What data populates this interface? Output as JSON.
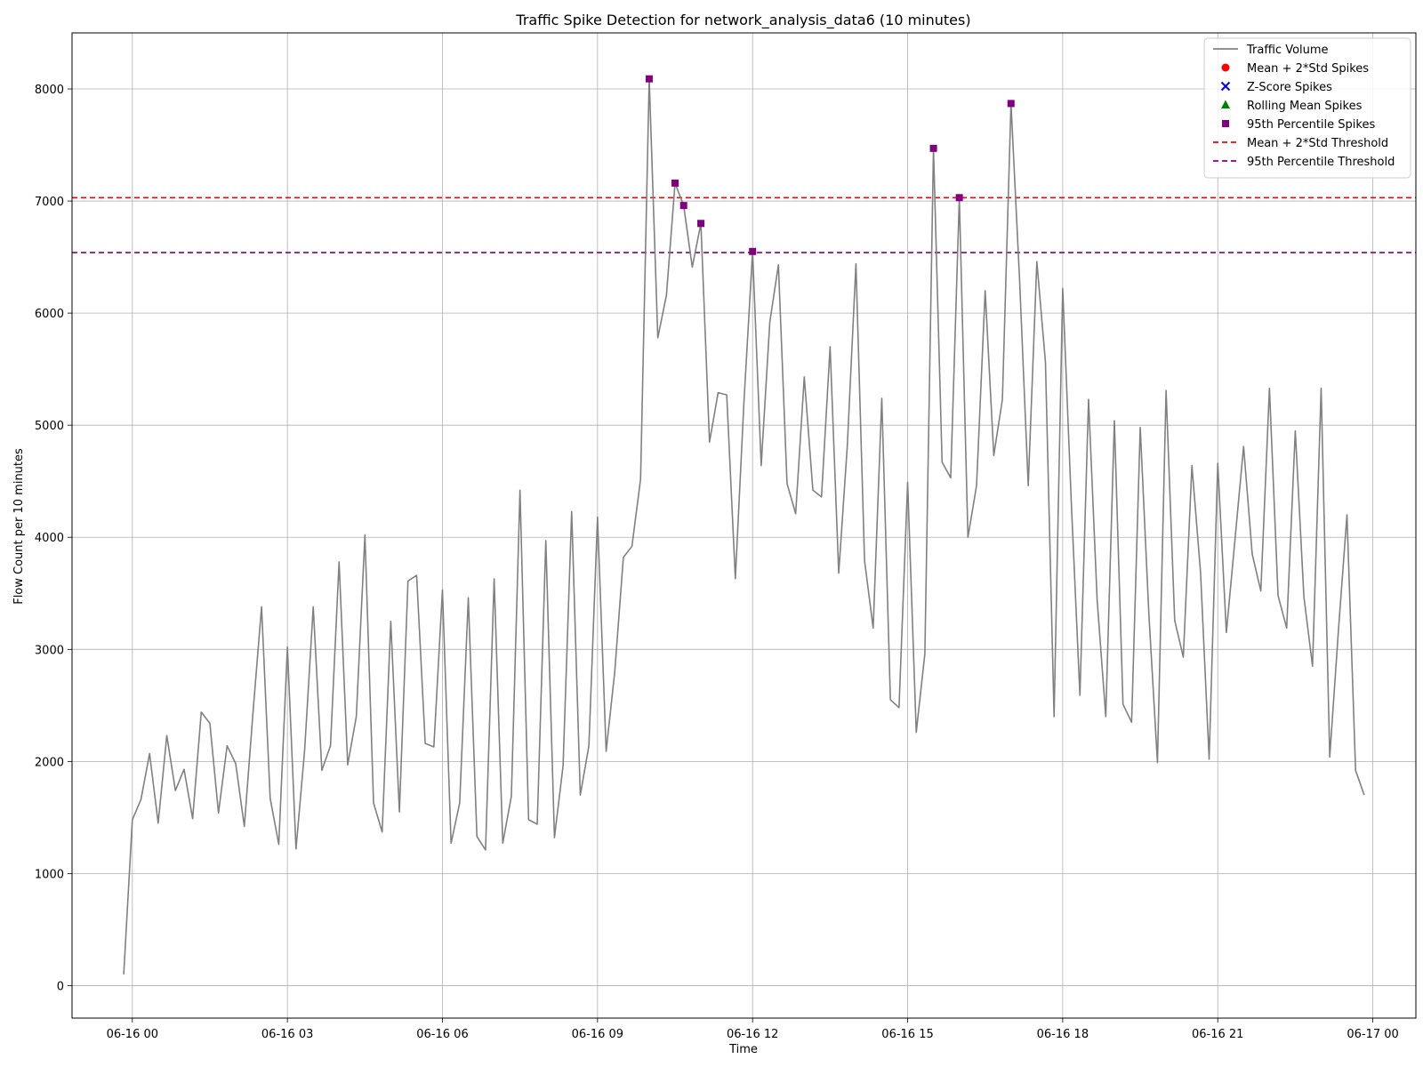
{
  "chart_data": {
    "type": "line",
    "title": "Traffic Spike Detection for network_analysis_data6 (10 minutes)",
    "xlabel": "Time",
    "ylabel": "Flow Count per 10 minutes",
    "xlim": [
      "2024-06-15T22:50",
      "2024-06-17T00:50"
    ],
    "ylim": [
      -290,
      8500
    ],
    "x_ticks": [
      {
        "value": "2024-06-16T00:00",
        "label": "06-16 00"
      },
      {
        "value": "2024-06-16T03:00",
        "label": "06-16 03"
      },
      {
        "value": "2024-06-16T06:00",
        "label": "06-16 06"
      },
      {
        "value": "2024-06-16T09:00",
        "label": "06-16 09"
      },
      {
        "value": "2024-06-16T12:00",
        "label": "06-16 12"
      },
      {
        "value": "2024-06-16T15:00",
        "label": "06-16 15"
      },
      {
        "value": "2024-06-16T18:00",
        "label": "06-16 18"
      },
      {
        "value": "2024-06-16T21:00",
        "label": "06-16 21"
      },
      {
        "value": "2024-06-17T00:00",
        "label": "06-17 00"
      }
    ],
    "y_ticks": [
      0,
      1000,
      2000,
      3000,
      4000,
      5000,
      6000,
      7000,
      8000
    ],
    "grid": true,
    "legend": "top-right",
    "series": [
      {
        "name": "Traffic Volume",
        "type": "line",
        "color": "#808080",
        "start": "2024-06-15T23:50",
        "interval_minutes": 10,
        "values": [
          100,
          1480,
          1660,
          2070,
          1450,
          2230,
          1740,
          1930,
          1490,
          2440,
          2340,
          1540,
          2140,
          1980,
          1420,
          2430,
          3380,
          1670,
          1260,
          3020,
          1220,
          2100,
          3380,
          1920,
          2140,
          3780,
          1970,
          2400,
          4020,
          1630,
          1370,
          3250,
          1550,
          3610,
          3660,
          2160,
          2130,
          3530,
          1270,
          1630,
          3460,
          1330,
          1210,
          3630,
          1270,
          1690,
          4420,
          1480,
          1440,
          3970,
          1320,
          1960,
          4230,
          1700,
          2140,
          4180,
          2090,
          2800,
          3820,
          3920,
          4520,
          8090,
          5780,
          6160,
          7160,
          6960,
          6410,
          6800,
          4850,
          5290,
          5270,
          3630,
          5210,
          6550,
          4640,
          5920,
          6430,
          4480,
          4210,
          5430,
          4420,
          4360,
          5700,
          3680,
          4820,
          6440,
          3790,
          3190,
          5240,
          2550,
          2480,
          4490,
          2260,
          2960,
          7470,
          4670,
          4530,
          7030,
          4000,
          4460,
          6200,
          4730,
          5230,
          7870,
          6290,
          4460,
          6460,
          5560,
          2400,
          6220,
          4310,
          2590,
          5230,
          3440,
          2400,
          5040,
          2510,
          2350,
          4980,
          3320,
          1990,
          5310,
          3260,
          2930,
          4640,
          3690,
          2020,
          4660,
          3150,
          3980,
          4810,
          3850,
          3520,
          5330,
          3480,
          3190,
          4950,
          3470,
          2850,
          5330,
          2040,
          3160,
          4200,
          1920,
          1700
        ]
      },
      {
        "name": "Mean + 2*Std Spikes",
        "type": "scatter",
        "marker": "circle",
        "color": "#ff0000",
        "points": []
      },
      {
        "name": "Z-Score Spikes",
        "type": "scatter",
        "marker": "x",
        "color": "#0000ff",
        "points": []
      },
      {
        "name": "Rolling Mean Spikes",
        "type": "scatter",
        "marker": "triangle",
        "color": "#008000",
        "points": []
      },
      {
        "name": "95th Percentile Spikes",
        "type": "scatter",
        "marker": "square",
        "color": "#800080",
        "points": [
          {
            "x": "2024-06-16T10:00",
            "y": 8090
          },
          {
            "x": "2024-06-16T10:30",
            "y": 7160
          },
          {
            "x": "2024-06-16T10:40",
            "y": 6960
          },
          {
            "x": "2024-06-16T11:00",
            "y": 6800
          },
          {
            "x": "2024-06-16T12:00",
            "y": 6550
          },
          {
            "x": "2024-06-16T15:30",
            "y": 7470
          },
          {
            "x": "2024-06-16T16:00",
            "y": 7030
          },
          {
            "x": "2024-06-16T17:00",
            "y": 7870
          }
        ]
      }
    ],
    "thresholds": [
      {
        "name": "Mean + 2*Std Threshold",
        "value": 7030,
        "color": "#ff0000",
        "style": "dashed"
      },
      {
        "name": "95th Percentile Threshold",
        "value": 6540,
        "color": "#800080",
        "style": "dashed"
      }
    ]
  }
}
